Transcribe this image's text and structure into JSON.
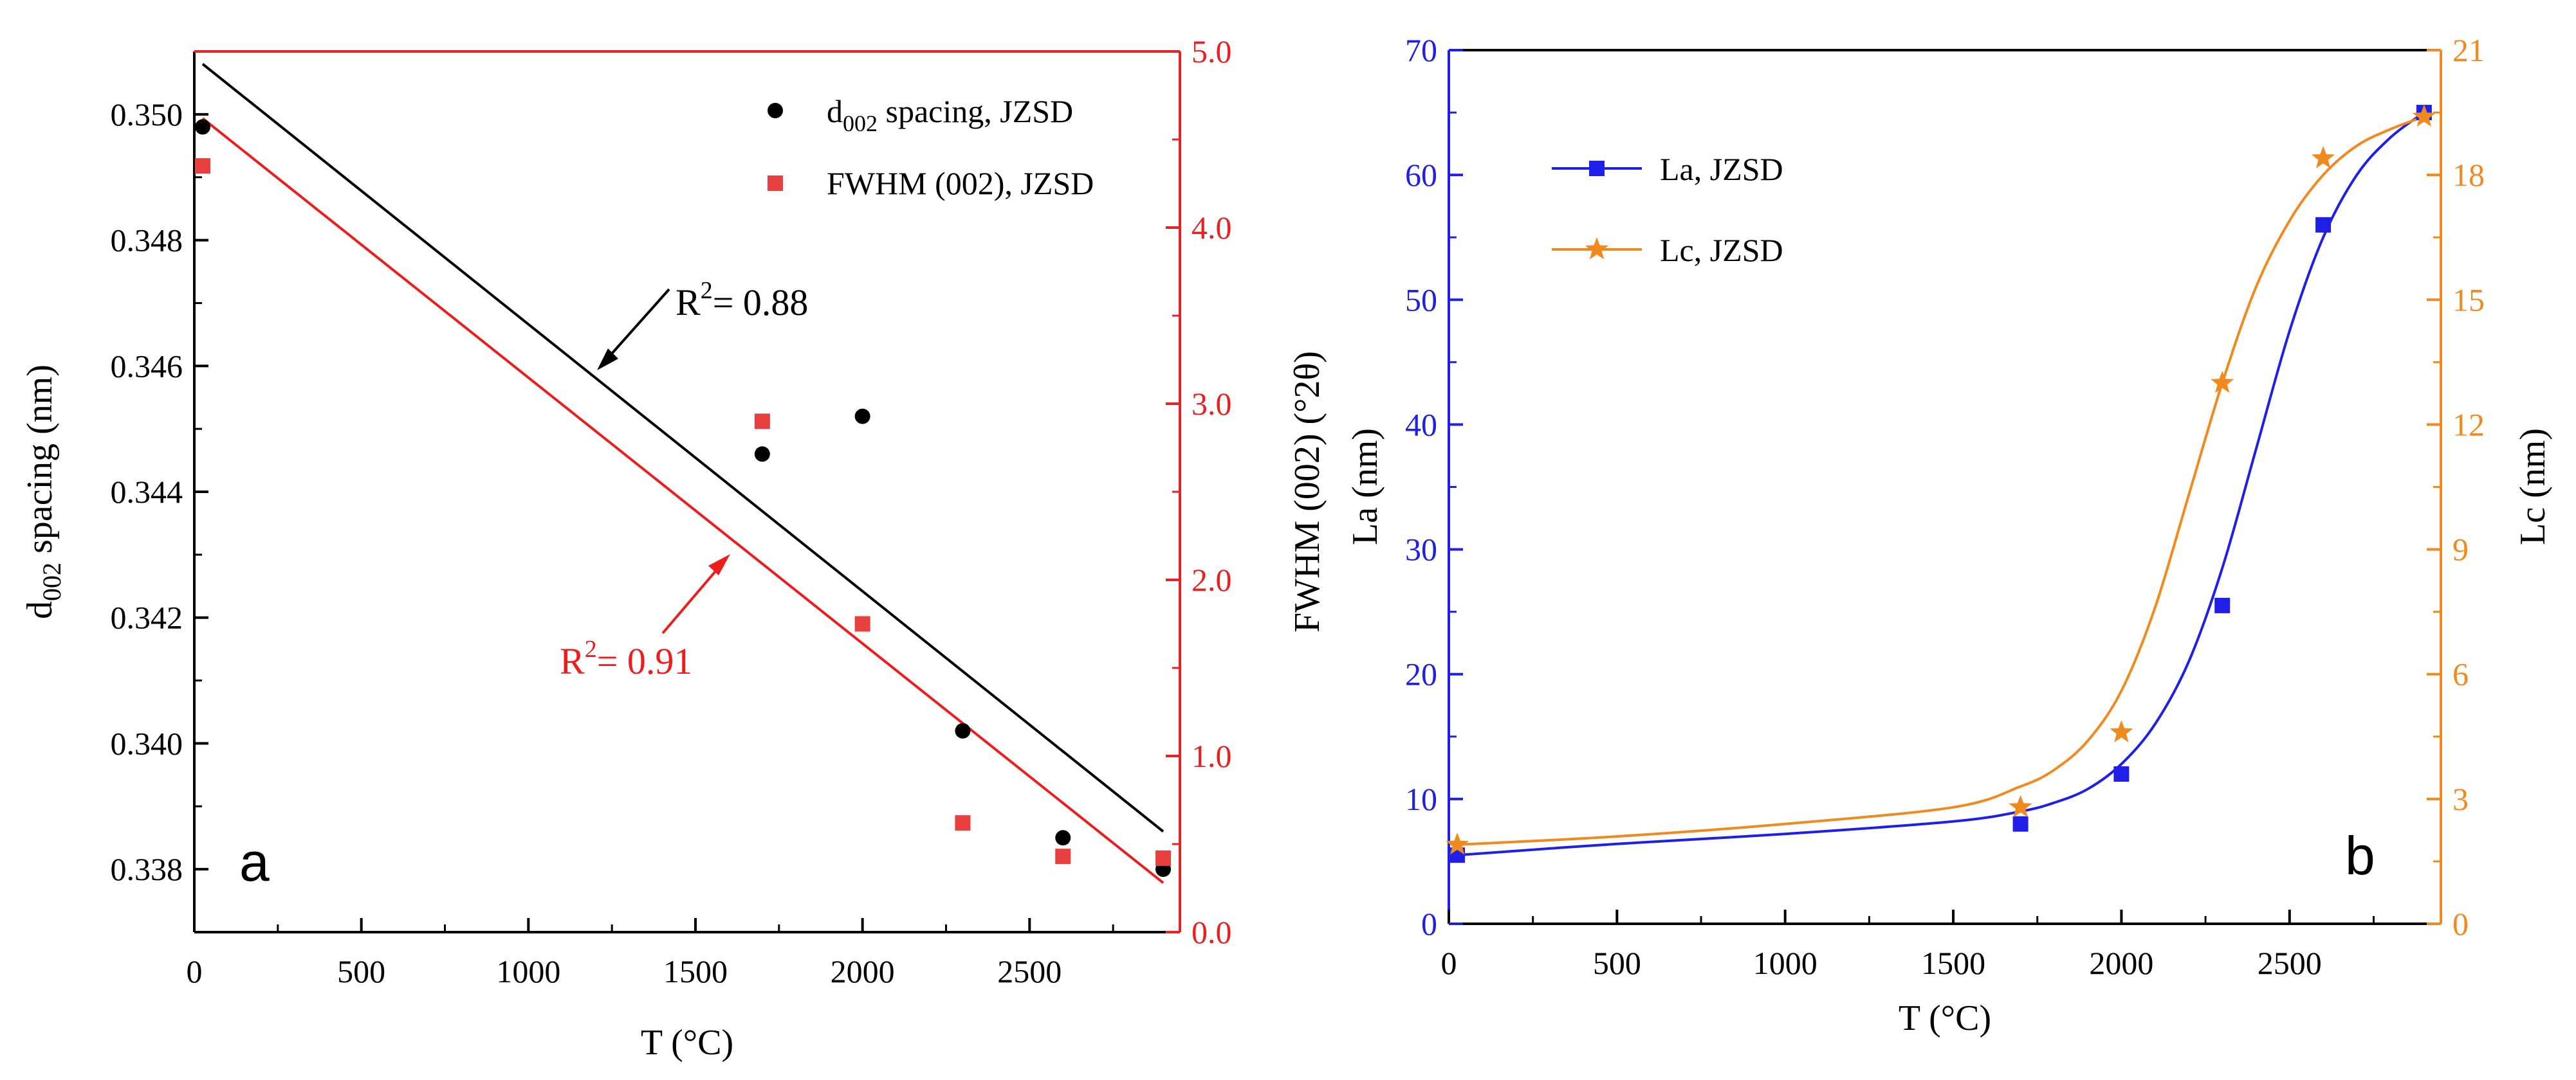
{
  "chart_data": [
    {
      "type": "scatter",
      "panel": "a",
      "xlabel": "T (°C)",
      "ylabel_left": "d002 spacing (nm)",
      "ylabel_right": "FWHM (002) (°2θ)",
      "xlim": [
        0,
        2950
      ],
      "ylim_left": [
        0.337,
        0.351
      ],
      "ylim_right": [
        0.0,
        5.0
      ],
      "x_ticks": [
        0,
        500,
        1000,
        1500,
        2000,
        2500
      ],
      "x_tick_labels": [
        "0",
        "500",
        "1000",
        "1500",
        "2000",
        "2500"
      ],
      "y_left_ticks": [
        0.338,
        0.34,
        0.342,
        0.344,
        0.346,
        0.348,
        0.35
      ],
      "y_left_tick_labels": [
        "0.338",
        "0.340",
        "0.342",
        "0.344",
        "0.346",
        "0.348",
        "0.350"
      ],
      "y_right_ticks": [
        0.0,
        1.0,
        2.0,
        3.0,
        4.0,
        5.0
      ],
      "y_right_tick_labels": [
        "0.0",
        "1.0",
        "2.0",
        "3.0",
        "4.0",
        "5.0"
      ],
      "series": [
        {
          "name": "d002 spacing, JZSD",
          "legend_main": "d",
          "legend_sub": "002",
          "legend_rest": " spacing, JZSD",
          "axis": "left",
          "marker": "circle",
          "color": "#000000",
          "x": [
            25,
            1700,
            2000,
            2300,
            2600,
            2900
          ],
          "y": [
            0.3498,
            0.3446,
            0.3452,
            0.3402,
            0.3385,
            0.338
          ]
        },
        {
          "name": "FWHM (002), JZSD",
          "axis": "right",
          "marker": "square",
          "color": "#e83f3f",
          "x": [
            25,
            1700,
            2000,
            2300,
            2600,
            2900
          ],
          "y": [
            4.35,
            2.9,
            1.75,
            0.62,
            0.43,
            0.42
          ]
        }
      ],
      "fit_lines": [
        {
          "axis": "left",
          "color": "#000000",
          "x": [
            25,
            2900
          ],
          "y": [
            0.3508,
            0.3386
          ],
          "r2_label": "R",
          "r2_value": "= 0.88"
        },
        {
          "axis": "right",
          "color": "#ee1c1c",
          "x": [
            25,
            2900
          ],
          "y": [
            4.62,
            0.28
          ],
          "r2_label": "R",
          "r2_value": "= 0.91"
        }
      ],
      "panel_label": "a"
    },
    {
      "type": "line",
      "panel": "b",
      "xlabel": "T (°C)",
      "ylabel_left": "La (nm)",
      "ylabel_right": "Lc (nm)",
      "xlim": [
        0,
        2950
      ],
      "ylim_left": [
        0,
        70
      ],
      "ylim_right": [
        0,
        21
      ],
      "x_ticks": [
        0,
        500,
        1000,
        1500,
        2000,
        2500
      ],
      "x_tick_labels": [
        "0",
        "500",
        "1000",
        "1500",
        "2000",
        "2500"
      ],
      "y_left_ticks": [
        0,
        10,
        20,
        30,
        40,
        50,
        60,
        70
      ],
      "y_left_tick_labels": [
        "0",
        "10",
        "20",
        "30",
        "40",
        "50",
        "60",
        "70"
      ],
      "y_right_ticks": [
        0,
        3,
        6,
        9,
        12,
        15,
        18,
        21
      ],
      "y_right_tick_labels": [
        "0",
        "3",
        "6",
        "9",
        "12",
        "15",
        "18",
        "21"
      ],
      "series": [
        {
          "name": "La, JZSD",
          "axis": "left",
          "marker": "square",
          "color": "#1f1fe8",
          "x": [
            25,
            1700,
            2000,
            2300,
            2600,
            2900
          ],
          "y": [
            5.5,
            8.0,
            12.0,
            25.5,
            56.0,
            65.0
          ],
          "fit_x": [
            25,
            500,
            1000,
            1500,
            1700,
            1800,
            1900,
            2000,
            2100,
            2200,
            2300,
            2400,
            2500,
            2600,
            2700,
            2800,
            2900
          ],
          "fit_y": [
            5.5,
            6.4,
            7.2,
            8.2,
            9.0,
            9.7,
            10.8,
            12.8,
            16.0,
            21.0,
            28.5,
            38.0,
            47.5,
            55.0,
            60.0,
            63.0,
            65.0
          ]
        },
        {
          "name": "Lc, JZSD",
          "axis": "right",
          "marker": "star",
          "color": "#f08a1e",
          "x": [
            25,
            1700,
            2000,
            2300,
            2600,
            2900
          ],
          "y": [
            1.9,
            2.8,
            4.6,
            13.0,
            18.4,
            19.4
          ],
          "fit_x": [
            25,
            500,
            1000,
            1500,
            1700,
            1800,
            1900,
            2000,
            2100,
            2200,
            2300,
            2400,
            2500,
            2600,
            2700,
            2800,
            2900
          ],
          "fit_y": [
            1.9,
            2.1,
            2.4,
            2.8,
            3.3,
            3.7,
            4.4,
            5.6,
            7.6,
            10.3,
            13.0,
            15.3,
            16.9,
            18.0,
            18.7,
            19.1,
            19.4
          ]
        }
      ],
      "panel_label": "b"
    }
  ]
}
